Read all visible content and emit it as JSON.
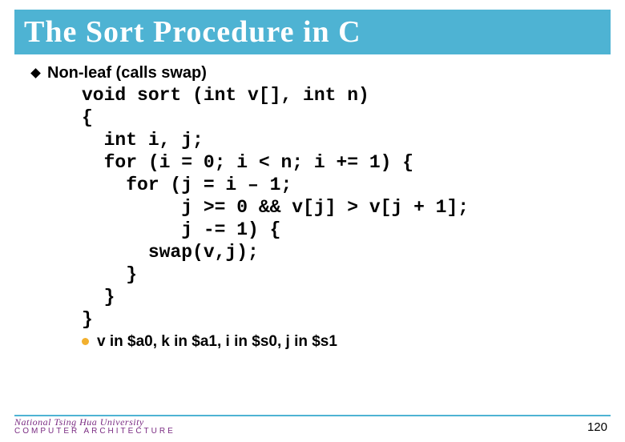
{
  "title": "The Sort Procedure in C",
  "bullet": "Non-leaf (calls swap)",
  "code": "void sort (int v[], int n)\n{\n  int i, j;\n  for (i = 0; i < n; i += 1) {\n    for (j = i – 1;\n         j >= 0 && v[j] > v[j + 1];\n         j -= 1) {\n      swap(v,j);\n    }\n  }\n}",
  "sub_bullet": "v in $a0, k in $a1, i in $s0, j in $s1",
  "footer": {
    "university": "National Tsing Hua University",
    "dept": "COMPUTER  ARCHITECTURE"
  },
  "page_number": "120",
  "colors": {
    "title_bg": "#4eb3d3",
    "title_text": "#ffffff",
    "bullet_dot": "#f2b02e",
    "footer_text": "#7a2b82",
    "footer_line": "#4eb3d3"
  }
}
